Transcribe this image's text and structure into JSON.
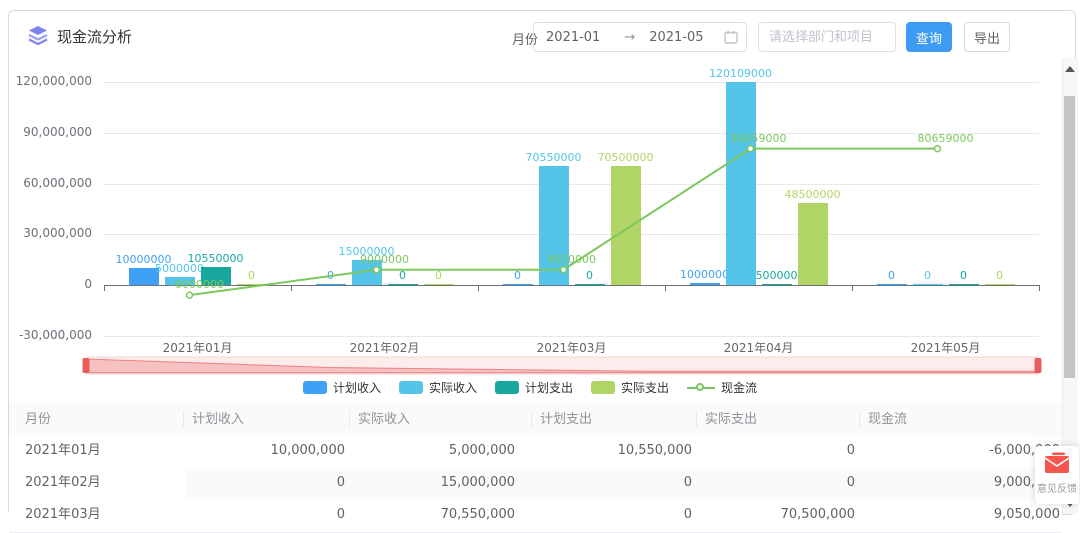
{
  "header": {
    "title": "现金流分析",
    "month_label": "月份",
    "date_range": {
      "start": "2021-01",
      "separator": "→",
      "end": "2021-05"
    },
    "project_filter": {
      "placeholder": "请选择部门和项目",
      "value": ""
    },
    "buttons": {
      "query": "查询",
      "export": "导出"
    },
    "colors": {
      "query_bg": "#3e9bf4",
      "title_icon": "#7b83f0"
    }
  },
  "chart_data": {
    "type": "bar",
    "categories": [
      "2021年01月",
      "2021年02月",
      "2021年03月",
      "2021年04月",
      "2021年05月"
    ],
    "series": [
      {
        "name": "计划收入",
        "type": "bar",
        "color": "#3da2f5",
        "values": [
          10000000,
          0,
          0,
          1000000,
          0
        ]
      },
      {
        "name": "实际收入",
        "type": "bar",
        "color": "#54c5e8",
        "values": [
          5000000,
          15000000,
          70550000,
          120109000,
          0
        ]
      },
      {
        "name": "计划支出",
        "type": "bar",
        "color": "#17a79f",
        "values": [
          10550000,
          0,
          0,
          500000,
          0
        ]
      },
      {
        "name": "实际支出",
        "type": "bar",
        "color": "#b0d566",
        "values": [
          0,
          0,
          70500000,
          48500000,
          0
        ]
      },
      {
        "name": "现金流",
        "type": "line",
        "color": "#7dc85e",
        "values": [
          -6000000,
          9000000,
          9050000,
          80659000,
          80659000
        ]
      }
    ],
    "y_ticks": [
      120000000,
      90000000,
      60000000,
      30000000,
      0,
      -30000000
    ],
    "y_tick_labels": [
      "120,000,000",
      "90,000,000",
      "60,000,000",
      "30,000,000",
      "0",
      "-30,000,000"
    ],
    "ylim": [
      -45000000,
      135000000
    ],
    "grid": true,
    "legend_position": "bottom",
    "datazoom": {
      "track_color": "#fdecec",
      "border_color": "#f3d6d6",
      "shadow_color": "#ef9e9e",
      "handle_color": "#e85c5c"
    }
  },
  "table": {
    "columns": [
      "月份",
      "计划收入",
      "实际收入",
      "计划支出",
      "实际支出",
      "现金流"
    ],
    "rows": [
      [
        "2021年01月",
        "10,000,000",
        "5,000,000",
        "10,550,000",
        "0",
        "-6,000,000"
      ],
      [
        "2021年02月",
        "0",
        "15,000,000",
        "0",
        "0",
        "9,000,000"
      ],
      [
        "2021年03月",
        "0",
        "70,550,000",
        "0",
        "70,500,000",
        "9,050,000"
      ]
    ]
  },
  "feedback": {
    "label": "意见反馈"
  }
}
